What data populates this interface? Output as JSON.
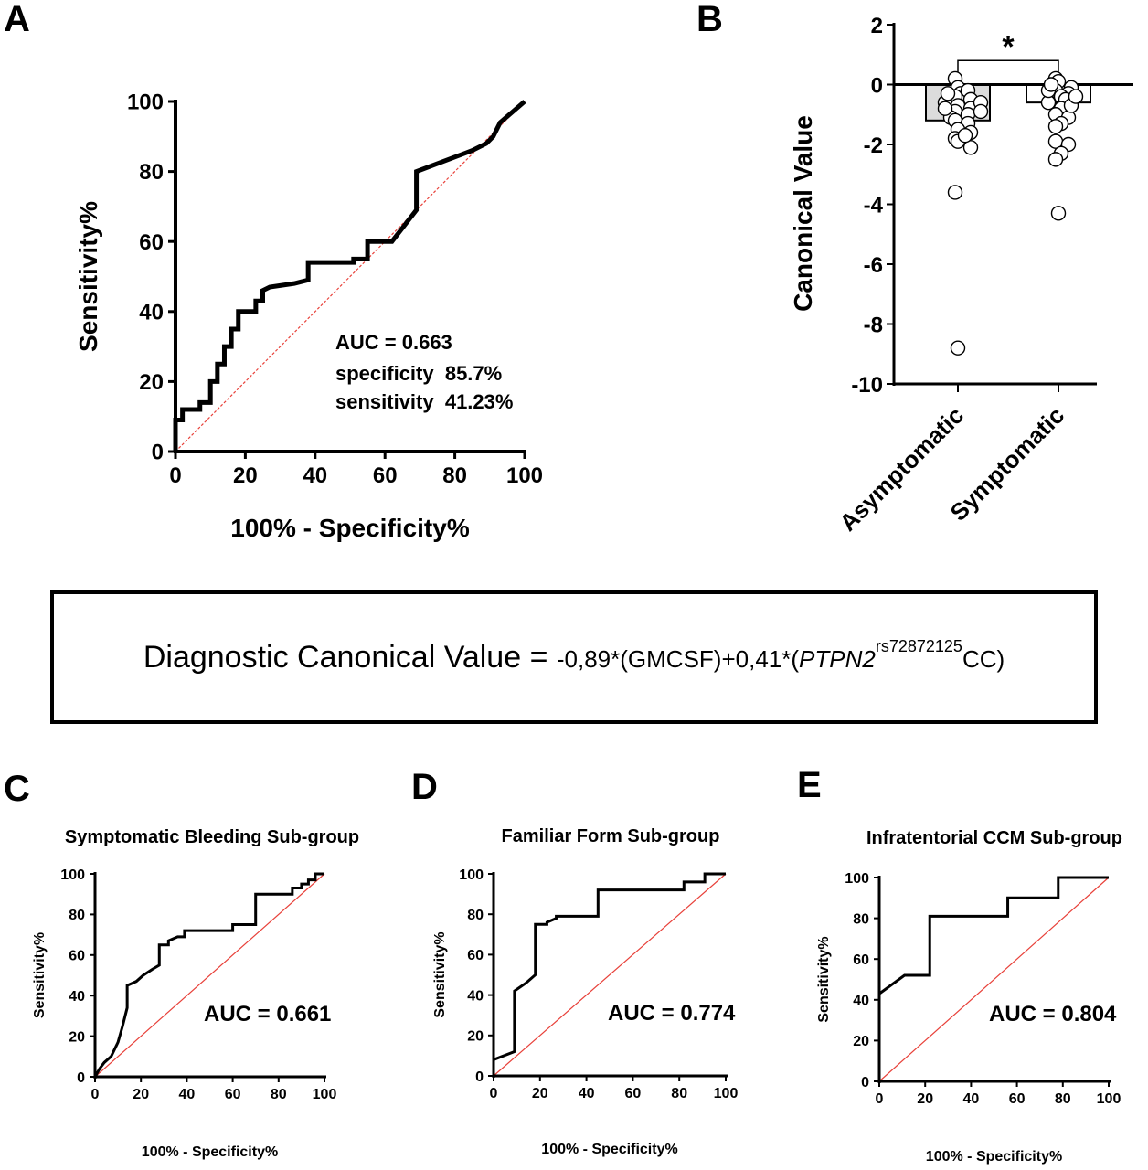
{
  "chart_data": [
    {
      "panel": "A",
      "type": "line",
      "title": "",
      "xlabel": "100% - Specificity%",
      "ylabel": "Sensitivity%",
      "xlim": [
        0,
        100
      ],
      "ylim": [
        0,
        100
      ],
      "xticks": [
        "0",
        "20",
        "40",
        "60",
        "80",
        "100"
      ],
      "yticks": [
        "0",
        "20",
        "40",
        "60",
        "80",
        "100"
      ],
      "annotations": [
        "AUC = 0.663",
        "specificity  85.7%",
        "sensitivity  41.23%"
      ],
      "diagonal_color": "#e8413a",
      "series": [
        {
          "x": [
            0,
            0,
            2,
            2,
            7,
            7,
            10,
            10,
            12,
            12,
            14,
            14,
            16,
            16,
            18,
            18,
            23,
            23,
            25,
            25,
            27,
            34,
            34,
            38,
            38,
            51,
            51,
            55,
            55,
            60,
            60,
            62,
            69,
            69,
            85,
            89,
            90,
            91,
            93,
            100
          ],
          "y": [
            0,
            9,
            9,
            12,
            12,
            14,
            14,
            20,
            20,
            25,
            25,
            30,
            30,
            35,
            35,
            40,
            40,
            43,
            43,
            46,
            47,
            48,
            48,
            49,
            54,
            54,
            55,
            55,
            60,
            60,
            60,
            60,
            69,
            80,
            86,
            88,
            89,
            90,
            94,
            100
          ]
        }
      ]
    },
    {
      "panel": "B",
      "type": "scatter",
      "title": "",
      "xlabel": "",
      "ylabel": "Canonical Value",
      "ylim": [
        -10,
        2
      ],
      "yticks": [
        "2",
        "0",
        "-2",
        "-4",
        "-6",
        "-8",
        "-10"
      ],
      "categories": [
        "Asymptomatic",
        "Symptomatic"
      ],
      "bar_means": [
        -1.2,
        -0.6
      ],
      "significance": "*",
      "points": [
        [
          0.2,
          -0.1,
          -0.3,
          -0.4,
          -0.2,
          -0.5,
          -0.6,
          -0.7,
          -0.8,
          -0.9,
          -1.0,
          -1.1,
          -1.2,
          -1.3,
          -0.6,
          -0.8,
          -1.5,
          -1.6,
          -1.8,
          -1.9,
          -2.1,
          -1.7,
          -0.3,
          -0.9,
          -3.6,
          -8.8
        ],
        [
          0.2,
          0.1,
          -0.1,
          -0.2,
          -0.3,
          -0.4,
          -0.5,
          -0.6,
          -0.8,
          -1.0,
          -1.1,
          -1.3,
          -1.4,
          -0.2,
          -0.7,
          -1.9,
          -2.0,
          -2.3,
          -2.5,
          -4.3,
          0.0,
          -0.4
        ]
      ]
    },
    {
      "panel": "C",
      "type": "line",
      "title": "Symptomatic Bleeding Sub-group",
      "xlabel": "100% - Specificity%",
      "ylabel": "Sensitivity%",
      "xlim": [
        0,
        100
      ],
      "ylim": [
        0,
        100
      ],
      "xticks": [
        "0",
        "20",
        "40",
        "60",
        "80",
        "100"
      ],
      "yticks": [
        "0",
        "20",
        "40",
        "60",
        "80",
        "100"
      ],
      "annotations": [
        "AUC = 0.661"
      ],
      "diagonal_color": "#e8413a",
      "series": [
        {
          "x": [
            0,
            2,
            4,
            7,
            10,
            12,
            14,
            14,
            18,
            21,
            25,
            28,
            28,
            32,
            32,
            36,
            39,
            39,
            57,
            60,
            60,
            70,
            70,
            82,
            86,
            86,
            90,
            90,
            93,
            93,
            96,
            96,
            100
          ],
          "y": [
            0,
            4,
            7,
            10,
            17,
            25,
            34,
            45,
            47,
            50,
            53,
            55,
            65,
            65,
            67,
            69,
            69,
            72,
            72,
            72,
            75,
            75,
            90,
            90,
            90,
            93,
            93,
            95,
            95,
            97,
            97,
            100,
            100
          ]
        }
      ]
    },
    {
      "panel": "D",
      "type": "line",
      "title": "Familiar Form Sub-group",
      "xlabel": "100% - Specificity%",
      "ylabel": "Sensitivity%",
      "xlim": [
        0,
        100
      ],
      "ylim": [
        0,
        100
      ],
      "xticks": [
        "0",
        "20",
        "40",
        "60",
        "80",
        "100"
      ],
      "yticks": [
        "0",
        "20",
        "40",
        "60",
        "80",
        "100"
      ],
      "annotations": [
        "AUC = 0.774"
      ],
      "diagonal_color": "#e8413a",
      "series": [
        {
          "x": [
            0,
            0,
            9,
            9,
            14,
            18,
            18,
            23,
            23,
            27,
            27,
            45,
            45,
            82,
            82,
            91,
            91,
            100
          ],
          "y": [
            0,
            8,
            12,
            42,
            46,
            50,
            75,
            75,
            76,
            78,
            79,
            79,
            92,
            92,
            96,
            96,
            100,
            100
          ]
        }
      ]
    },
    {
      "panel": "E",
      "type": "line",
      "title": "Infratentorial CCM Sub-group",
      "xlabel": "100% - Specificity%",
      "ylabel": "Sensitivity%",
      "xlim": [
        0,
        100
      ],
      "ylim": [
        0,
        100
      ],
      "xticks": [
        "0",
        "20",
        "40",
        "60",
        "80",
        "100"
      ],
      "yticks": [
        "0",
        "20",
        "40",
        "60",
        "80",
        "100"
      ],
      "annotations": [
        "AUC = 0.804"
      ],
      "diagonal_color": "#e8413a",
      "series": [
        {
          "x": [
            0,
            0,
            11,
            22,
            22,
            56,
            56,
            78,
            78,
            100
          ],
          "y": [
            0,
            43,
            52,
            52,
            81,
            81,
            90,
            90,
            100,
            100
          ]
        }
      ]
    }
  ],
  "panel_letters": [
    "A",
    "B",
    "C",
    "D",
    "E"
  ],
  "equation": {
    "prefix": "Diagnostic Canonical Value = ",
    "coef1": "-0,89*(GMCSF)+0,41*(",
    "gene": "PTPN2",
    "snp": "rs72872125",
    "genotype": "CC)"
  }
}
